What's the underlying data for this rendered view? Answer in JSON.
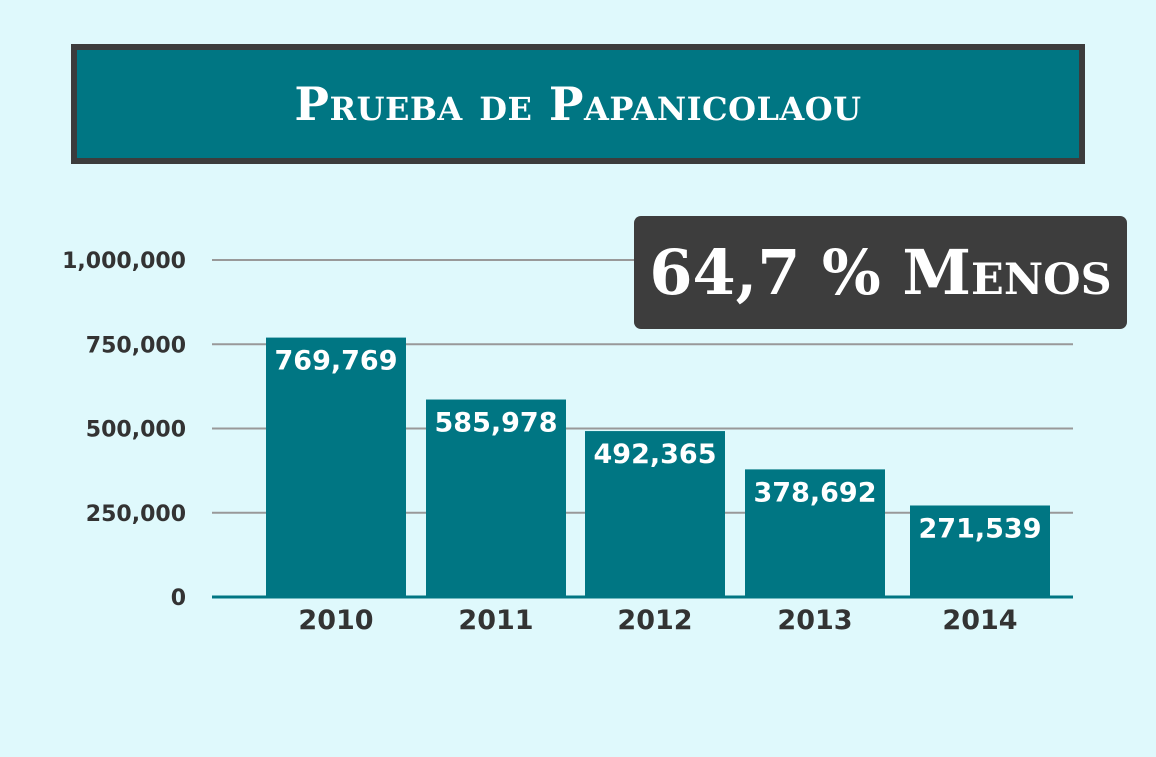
{
  "title": "Prueba de Papanicolaou",
  "badge": "64,7 % Menos",
  "colors": {
    "background": "#dff9fc",
    "bar": "#007683",
    "title_box": "#007683",
    "title_border": "#3c3c3c",
    "badge": "#3d3d3d",
    "gridline": "#999999",
    "axis": "#007683"
  },
  "chart_data": {
    "type": "bar",
    "categories": [
      "2010",
      "2011",
      "2012",
      "2013",
      "2014"
    ],
    "values": [
      769769,
      585978,
      492365,
      378692,
      271539
    ],
    "value_labels": [
      "769,769",
      "585,978",
      "492,365",
      "378,692",
      "271,539"
    ],
    "y_ticks": [
      0,
      250000,
      500000,
      750000,
      1000000
    ],
    "y_tick_labels": [
      "0",
      "250,000",
      "500,000",
      "750,000",
      "1,000,000"
    ],
    "ylim": [
      0,
      1000000
    ],
    "grid": true,
    "legend": "none"
  }
}
